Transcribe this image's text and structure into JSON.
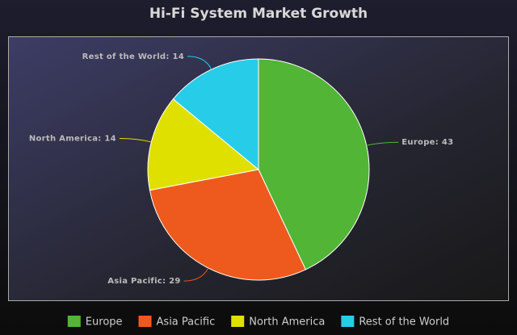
{
  "chart_data": {
    "type": "pie",
    "title": "Hi-Fi System Market Growth",
    "categories": [
      "Europe",
      "Asia Pacific",
      "North America",
      "Rest of the World"
    ],
    "values": [
      43,
      29,
      14,
      14
    ],
    "value_labels": [
      "Europe: 43",
      "Asia Pacific: 29",
      "North America: 14",
      "Rest of the World: 14"
    ],
    "colors": [
      "#52b535",
      "#ee5a1d",
      "#e0e000",
      "#27cce8"
    ],
    "legend": "bottom"
  }
}
